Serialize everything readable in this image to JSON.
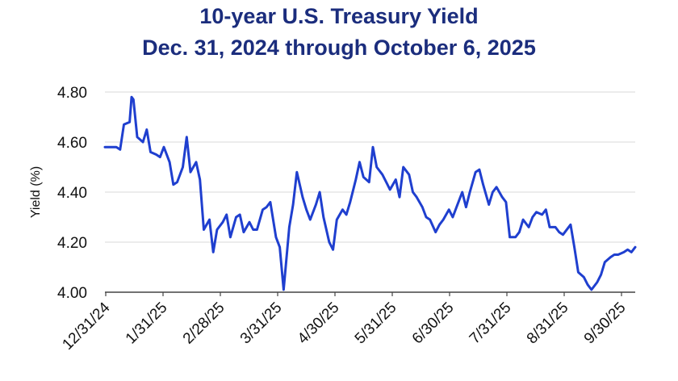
{
  "chart_data": {
    "type": "line",
    "title": "10-year U.S. Treasury Yield",
    "subtitle": "Dec. 31, 2024 through October 6, 2025",
    "ylabel": "Yield (%)",
    "xlabel": "",
    "ylim": [
      4.0,
      4.8
    ],
    "y_ticks": [
      "4.00",
      "4.20",
      "4.40",
      "4.60",
      "4.80"
    ],
    "x_ticks": [
      "12/31/24",
      "1/31/25",
      "2/28/25",
      "3/31/25",
      "4/30/25",
      "5/31/25",
      "6/30/25",
      "7/31/25",
      "8/31/25",
      "9/30/25"
    ],
    "grid": "horizontal",
    "line_color": "#1f3fcf",
    "series": [
      {
        "x": [
          "2024-12-31",
          "2025-01-03",
          "2025-01-06",
          "2025-01-08",
          "2025-01-10",
          "2025-01-13",
          "2025-01-14",
          "2025-01-15",
          "2025-01-17",
          "2025-01-20",
          "2025-01-22",
          "2025-01-24",
          "2025-01-27",
          "2025-01-29",
          "2025-01-31",
          "2025-02-03",
          "2025-02-05",
          "2025-02-07",
          "2025-02-10",
          "2025-02-12",
          "2025-02-14",
          "2025-02-17",
          "2025-02-19",
          "2025-02-21",
          "2025-02-24",
          "2025-02-26",
          "2025-02-28",
          "2025-03-03",
          "2025-03-05",
          "2025-03-07",
          "2025-03-10",
          "2025-03-12",
          "2025-03-14",
          "2025-03-17",
          "2025-03-19",
          "2025-03-21",
          "2025-03-24",
          "2025-03-26",
          "2025-03-28",
          "2025-03-31",
          "2025-04-02",
          "2025-04-04",
          "2025-04-07",
          "2025-04-09",
          "2025-04-11",
          "2025-04-14",
          "2025-04-16",
          "2025-04-18",
          "2025-04-21",
          "2025-04-23",
          "2025-04-25",
          "2025-04-28",
          "2025-04-30",
          "2025-05-02",
          "2025-05-05",
          "2025-05-07",
          "2025-05-09",
          "2025-05-12",
          "2025-05-14",
          "2025-05-16",
          "2025-05-19",
          "2025-05-21",
          "2025-05-23",
          "2025-05-26",
          "2025-05-28",
          "2025-05-30",
          "2025-06-02",
          "2025-06-04",
          "2025-06-06",
          "2025-06-09",
          "2025-06-11",
          "2025-06-13",
          "2025-06-16",
          "2025-06-18",
          "2025-06-20",
          "2025-06-23",
          "2025-06-25",
          "2025-06-27",
          "2025-06-30",
          "2025-07-02",
          "2025-07-04",
          "2025-07-07",
          "2025-07-09",
          "2025-07-11",
          "2025-07-14",
          "2025-07-16",
          "2025-07-18",
          "2025-07-21",
          "2025-07-23",
          "2025-07-25",
          "2025-07-28",
          "2025-07-30",
          "2025-08-01",
          "2025-08-04",
          "2025-08-06",
          "2025-08-08",
          "2025-08-11",
          "2025-08-13",
          "2025-08-15",
          "2025-08-18",
          "2025-08-20",
          "2025-08-22",
          "2025-08-25",
          "2025-08-27",
          "2025-08-29",
          "2025-09-02",
          "2025-09-04",
          "2025-09-06",
          "2025-09-09",
          "2025-09-11",
          "2025-09-13",
          "2025-09-16",
          "2025-09-18",
          "2025-09-20",
          "2025-09-23",
          "2025-09-25",
          "2025-09-27",
          "2025-09-30",
          "2025-10-02",
          "2025-10-04",
          "2025-10-06"
        ],
        "values": [
          4.58,
          4.58,
          4.58,
          4.57,
          4.67,
          4.68,
          4.78,
          4.77,
          4.62,
          4.6,
          4.65,
          4.56,
          4.55,
          4.54,
          4.58,
          4.52,
          4.43,
          4.44,
          4.5,
          4.62,
          4.48,
          4.52,
          4.45,
          4.25,
          4.29,
          4.16,
          4.25,
          4.28,
          4.31,
          4.22,
          4.3,
          4.31,
          4.24,
          4.28,
          4.25,
          4.25,
          4.33,
          4.34,
          4.36,
          4.22,
          4.18,
          4.01,
          4.26,
          4.35,
          4.48,
          4.38,
          4.33,
          4.29,
          4.35,
          4.4,
          4.3,
          4.2,
          4.17,
          4.29,
          4.33,
          4.31,
          4.36,
          4.45,
          4.52,
          4.46,
          4.44,
          4.58,
          4.5,
          4.47,
          4.44,
          4.41,
          4.45,
          4.38,
          4.5,
          4.47,
          4.4,
          4.38,
          4.34,
          4.3,
          4.29,
          4.24,
          4.27,
          4.29,
          4.33,
          4.3,
          4.34,
          4.4,
          4.34,
          4.4,
          4.48,
          4.49,
          4.43,
          4.35,
          4.4,
          4.42,
          4.38,
          4.36,
          4.22,
          4.22,
          4.24,
          4.29,
          4.26,
          4.3,
          4.32,
          4.31,
          4.33,
          4.26,
          4.26,
          4.24,
          4.23,
          4.27,
          4.18,
          4.08,
          4.06,
          4.03,
          4.01,
          4.04,
          4.07,
          4.12,
          4.14,
          4.15,
          4.15,
          4.16,
          4.17,
          4.16,
          4.18
        ]
      }
    ]
  }
}
